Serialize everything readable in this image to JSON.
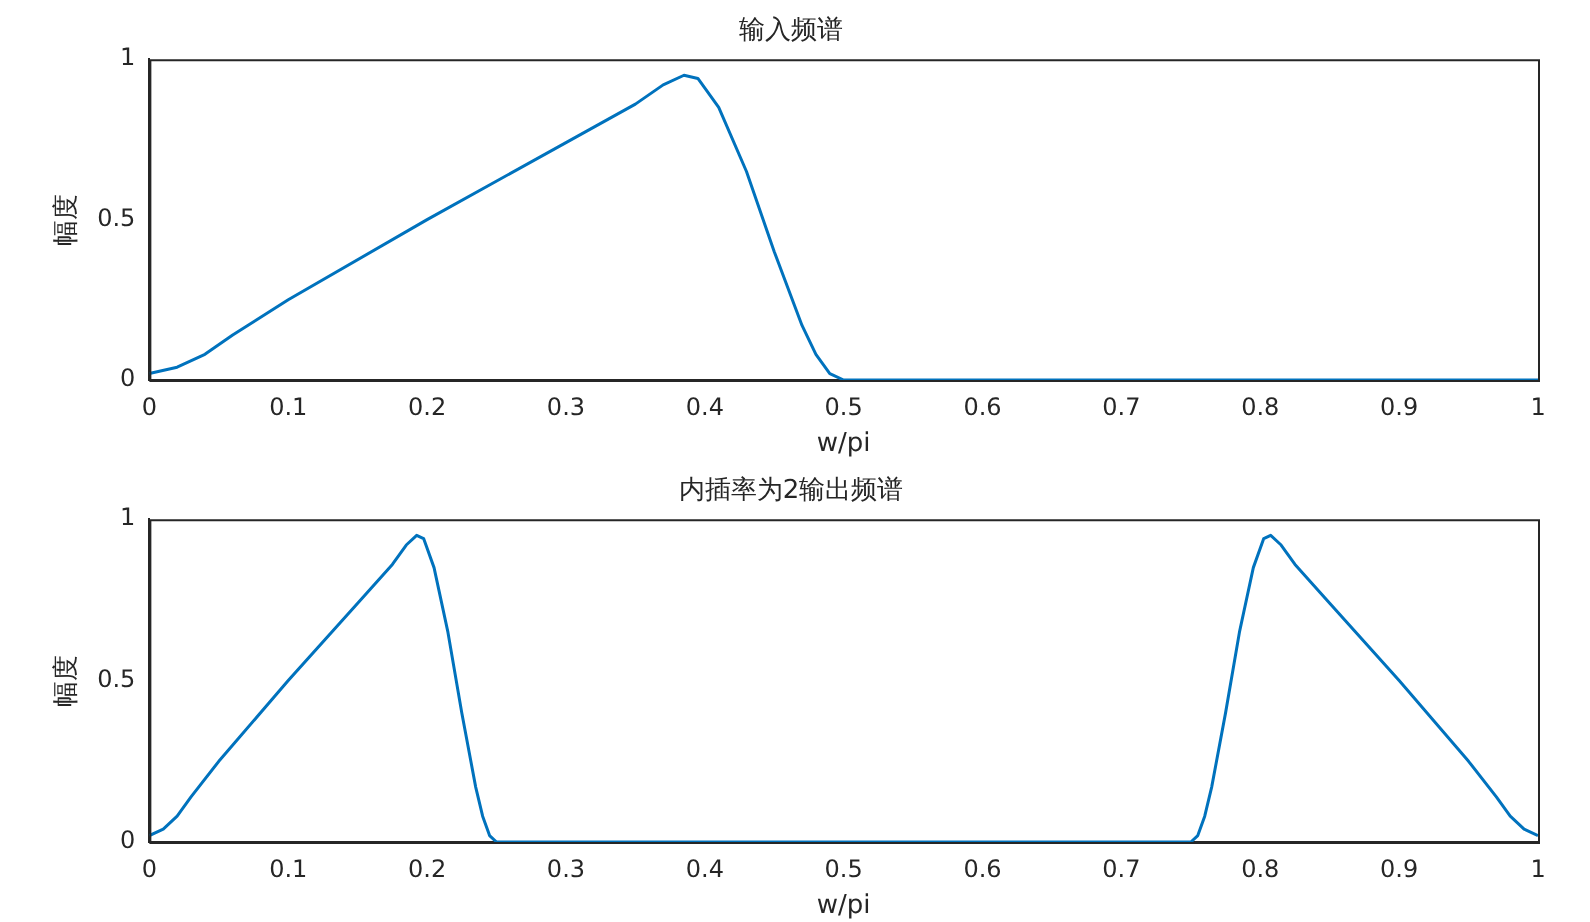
{
  "chart_data": [
    {
      "type": "line",
      "title": "输入频谱",
      "xlabel": "w/pi",
      "ylabel": "幅度",
      "grid": false,
      "legend": false,
      "marker": "none",
      "line_style": "solid",
      "xlim": [
        0,
        1
      ],
      "xticks": [
        0,
        0.1,
        0.2,
        0.3,
        0.4,
        0.5,
        0.6,
        0.7,
        0.8,
        0.9,
        1
      ],
      "ylim": [
        0,
        1
      ],
      "yticks": [
        0,
        0.5,
        1
      ],
      "series": [
        {
          "color": "#0072bd",
          "x": [
            0,
            0.02,
            0.04,
            0.06,
            0.1,
            0.2,
            0.3,
            0.35,
            0.37,
            0.385,
            0.395,
            0.41,
            0.43,
            0.45,
            0.47,
            0.48,
            0.49,
            0.5,
            1
          ],
          "values": [
            0.02,
            0.04,
            0.08,
            0.14,
            0.25,
            0.5,
            0.74,
            0.86,
            0.92,
            0.95,
            0.94,
            0.85,
            0.65,
            0.4,
            0.17,
            0.08,
            0.02,
            0,
            0
          ]
        }
      ]
    },
    {
      "type": "line",
      "title": "内插率为2输出频谱",
      "xlabel": "w/pi",
      "ylabel": "幅度",
      "grid": false,
      "legend": false,
      "marker": "none",
      "line_style": "solid",
      "xlim": [
        0,
        1
      ],
      "xticks": [
        0,
        0.1,
        0.2,
        0.3,
        0.4,
        0.5,
        0.6,
        0.7,
        0.8,
        0.9,
        1
      ],
      "ylim": [
        0,
        1
      ],
      "yticks": [
        0,
        0.5,
        1
      ],
      "series": [
        {
          "color": "#0072bd",
          "x": [
            0,
            0.01,
            0.02,
            0.03,
            0.05,
            0.1,
            0.15,
            0.175,
            0.185,
            0.1925,
            0.1975,
            0.205,
            0.215,
            0.225,
            0.235,
            0.24,
            0.245,
            0.25,
            0.75,
            0.755,
            0.76,
            0.765,
            0.775,
            0.785,
            0.795,
            0.8025,
            0.8075,
            0.815,
            0.825,
            0.85,
            0.9,
            0.95,
            0.97,
            0.98,
            0.99,
            1
          ],
          "values": [
            0.02,
            0.04,
            0.08,
            0.14,
            0.25,
            0.5,
            0.74,
            0.86,
            0.92,
            0.95,
            0.94,
            0.85,
            0.65,
            0.4,
            0.17,
            0.08,
            0.02,
            0,
            0,
            0.02,
            0.08,
            0.17,
            0.4,
            0.65,
            0.85,
            0.94,
            0.95,
            0.92,
            0.86,
            0.74,
            0.5,
            0.25,
            0.14,
            0.08,
            0.04,
            0.02
          ]
        }
      ]
    }
  ]
}
